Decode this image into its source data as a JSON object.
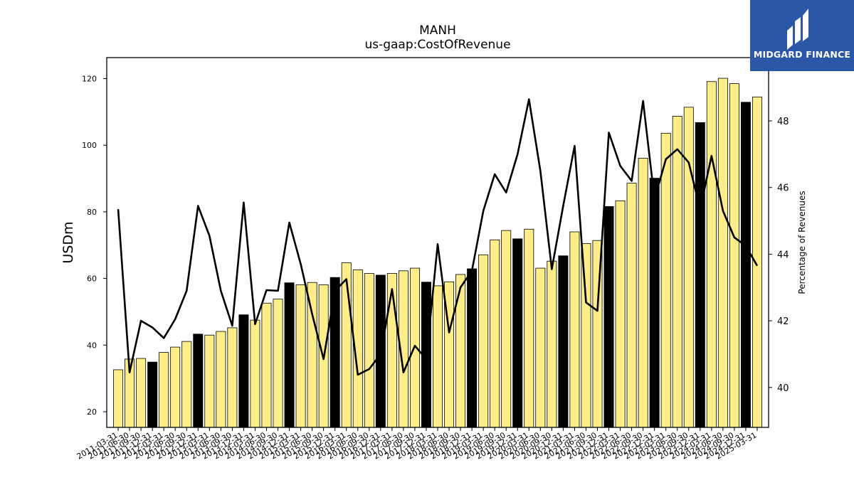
{
  "header": {
    "title": "MANH",
    "subtitle": "us-gaap:CostOfRevenue"
  },
  "logo": {
    "brand_text": "MIDGARD FINANCE",
    "background_color": "#2b57a8",
    "icon": "midgard-logo-icon"
  },
  "chart_data": {
    "type": "bar",
    "title": "MANH",
    "subtitle": "us-gaap:CostOfRevenue",
    "ylabel": "USDm",
    "y2label": "Percentage of Revenues",
    "ylim": [
      15.3,
      126.3
    ],
    "y2lim": [
      38.8,
      49.9
    ],
    "yticks": [
      20,
      40,
      60,
      80,
      100,
      120
    ],
    "y2ticks": [
      40,
      42,
      44,
      46,
      48
    ],
    "grid": false,
    "legend": "none",
    "colors": {
      "bar": "#ffee88",
      "bar_q4": "#000000",
      "line": "#000000"
    },
    "categories": [
      "2011-03-31",
      "2011-06-30",
      "2011-09-30",
      "2011-12-31",
      "2012-03-31",
      "2012-06-30",
      "2012-09-30",
      "2012-12-31",
      "2013-03-31",
      "2013-06-30",
      "2013-09-30",
      "2013-12-31",
      "2014-03-31",
      "2014-06-30",
      "2014-09-30",
      "2014-12-31",
      "2015-03-31",
      "2015-06-30",
      "2015-09-30",
      "2015-12-31",
      "2016-03-31",
      "2016-06-30",
      "2016-09-30",
      "2016-12-31",
      "2017-03-31",
      "2017-06-30",
      "2017-09-30",
      "2017-12-31",
      "2018-03-31",
      "2018-06-30",
      "2018-09-30",
      "2018-12-31",
      "2019-03-31",
      "2019-06-30",
      "2019-09-30",
      "2019-12-31",
      "2020-03-31",
      "2020-06-30",
      "2020-09-30",
      "2020-12-31",
      "2021-03-31",
      "2021-06-30",
      "2021-09-30",
      "2021-12-31",
      "2022-03-31",
      "2022-06-30",
      "2022-09-30",
      "2022-12-31",
      "2023-03-31",
      "2023-06-30",
      "2023-09-30",
      "2023-12-31",
      "2024-03-31",
      "2024-06-30",
      "2024-09-30",
      "2024-12-31",
      "2025-03-31"
    ],
    "x_tick_labels": [
      "2011-03-31",
      "2011-06-30",
      "2011-09-30",
      "2011-12-31",
      "2012-03-31",
      "2012-06-30",
      "2012-09-30",
      "2012-12-31",
      "2013-03-31",
      "2013-06-30",
      "2013-09-30",
      "2013-12-31",
      "2014-03-31",
      "2014-06-30",
      "2014-09-30",
      "2014-12-31",
      "2015-03-31",
      "2015-06-30",
      "2015-09-30",
      "2015-12-31",
      "2016-03-31",
      "2016-06-30",
      "2016-09-30",
      "2016-12-31",
      "2017-03-31",
      "2017-06-30",
      "2017-09-30",
      "2017-12-31",
      "2018-03-31",
      "2018-06-30",
      "2018-09-30",
      "2018-12-31",
      "2019-03-31",
      "2019-06-30",
      "2019-09-30",
      "2019-12-31",
      "2020-03-31",
      "2020-06-30",
      "2020-09-30",
      "2020-12-31",
      "2021-03-31",
      "2021-06-30",
      "2021-09-30",
      "2021-12-31",
      "2022-03-31",
      "2022-06-30",
      "2022-09-30",
      "2022-12-31",
      "2023-03-31",
      "2023-06-30",
      "2023-09-30",
      "2023-12-31",
      "2024-03-31",
      "2024-06-30",
      "2024-09-30",
      "2024-12-31",
      "2025-03-31"
    ],
    "series": [
      {
        "axis": "left",
        "kind": "bar",
        "values": [
          32.6,
          35.8,
          36.0,
          34.9,
          37.8,
          39.4,
          41.1,
          43.3,
          43.0,
          44.1,
          45.2,
          49.1,
          47.5,
          52.6,
          53.8,
          58.7,
          58.1,
          58.8,
          58.1,
          60.3,
          64.7,
          62.6,
          61.5,
          61.0,
          61.5,
          62.3,
          63.1,
          58.9,
          57.8,
          59.0,
          61.2,
          62.9,
          67.1,
          71.6,
          74.4,
          71.9,
          74.8,
          63.1,
          65.2,
          66.8,
          74.0,
          70.5,
          71.4,
          81.6,
          83.3,
          88.6,
          96.1,
          90.1,
          103.6,
          108.7,
          111.4,
          106.8,
          119.1,
          120.1,
          118.5,
          112.9,
          114.5
        ]
      },
      {
        "axis": "right",
        "kind": "line",
        "values": [
          45.35,
          40.45,
          42.0,
          41.8,
          41.48,
          42.05,
          42.9,
          45.45,
          44.55,
          42.9,
          41.85,
          45.55,
          41.9,
          42.92,
          42.9,
          44.95,
          43.7,
          42.2,
          40.85,
          42.9,
          43.25,
          40.38,
          40.55,
          41.0,
          42.95,
          40.45,
          41.25,
          40.85,
          44.3,
          41.65,
          43.0,
          43.5,
          45.3,
          46.4,
          45.85,
          47.0,
          48.65,
          46.5,
          43.55,
          45.45,
          47.25,
          42.55,
          42.3,
          47.65,
          46.65,
          46.2,
          48.6,
          45.65,
          46.85,
          47.15,
          46.75,
          45.35,
          46.95,
          45.3,
          44.5,
          44.25,
          43.65
        ]
      }
    ]
  }
}
